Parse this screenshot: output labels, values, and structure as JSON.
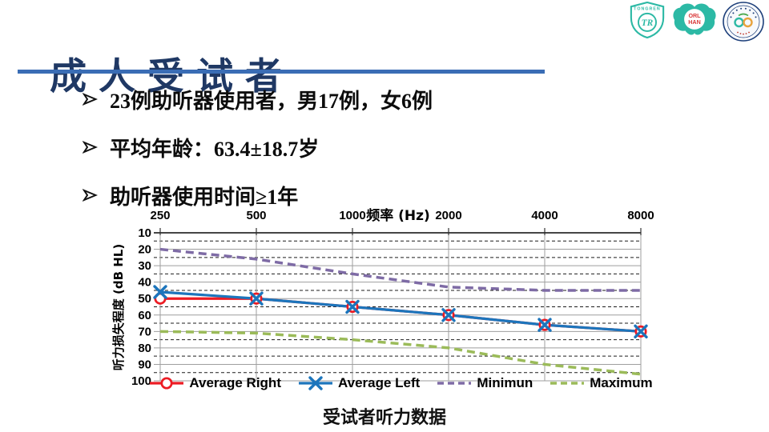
{
  "slide_title": "成人受试者",
  "bullets": [
    "23例助听器使用者，男17例，女6例",
    "平均年龄：63.4±18.7岁",
    "助听器使用时间≥1年"
  ],
  "caption": "受试者听力数据",
  "icons": {
    "bullet_marker": "arrowhead-right",
    "logo_1": "tongren-shield",
    "logo_2": "orl-han-heart",
    "logo_3": "anniversary-seal"
  },
  "logos": {
    "shield_text": "TONGREN",
    "shield_monogram": "TR",
    "heart_line1": "ORL",
    "heart_line2": "HAN"
  },
  "colors": {
    "title": "#1F3864",
    "rule": "#3A6DB5",
    "logo_teal": "#2CB9A5",
    "seal_navy": "#1D3F7A"
  },
  "chart_data": {
    "type": "line",
    "categories": [
      "250",
      "500",
      "1000",
      "2000",
      "4000",
      "8000"
    ],
    "xlabel": "频率 (Hz)",
    "ylabel": "听力损失程度 (dB HL)",
    "y_axis": {
      "min": 10,
      "max": 100,
      "major_step": 10,
      "minor_step": 5,
      "direction": "values-increase-downward"
    },
    "grid": {
      "major_solid": true,
      "minor_dashed": true,
      "vertical_at_categories": true
    },
    "legend_position": "bottom",
    "series": [
      {
        "name": "Average Right",
        "color": "#EC1C24",
        "line": "solid",
        "marker": "open-circle",
        "values": [
          50,
          50,
          55,
          60,
          66,
          70
        ]
      },
      {
        "name": "Average Left",
        "color": "#1C75BC",
        "line": "solid",
        "marker": "x",
        "values": [
          46,
          50,
          55,
          60,
          66,
          70
        ]
      },
      {
        "name": "Minimun",
        "color": "#7E6BA5",
        "line": "dashed",
        "marker": "none",
        "values": [
          20,
          26,
          35,
          43,
          45,
          45
        ]
      },
      {
        "name": "Maximum",
        "color": "#9BBB59",
        "line": "dashed",
        "marker": "none",
        "values": [
          70,
          71,
          75,
          80,
          90,
          96
        ]
      }
    ]
  }
}
